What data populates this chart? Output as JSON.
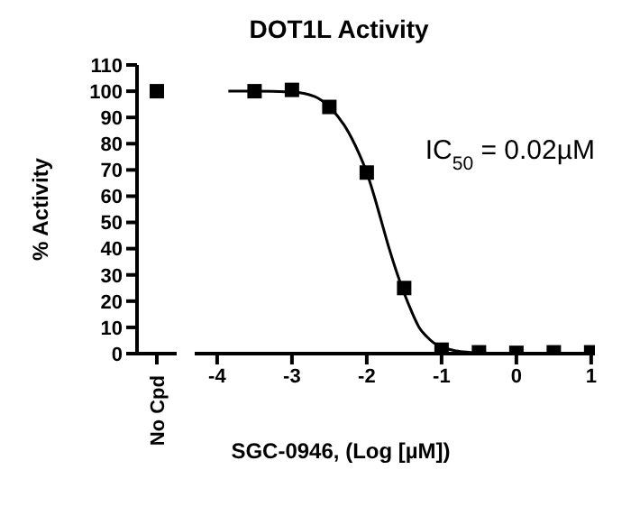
{
  "chart_data": [
    {
      "type": "scatter",
      "ylabel": "% Activity",
      "categories": [
        "No Cpd"
      ],
      "values": [
        100
      ],
      "color": "#000000",
      "marker": "square",
      "ylim": [
        0,
        110
      ],
      "yticks": [
        0,
        10,
        20,
        30,
        40,
        50,
        60,
        70,
        80,
        90,
        100,
        110
      ]
    },
    {
      "type": "scatter",
      "title": "DOT1L Activity",
      "xlabel": "SGC-0946, (Log [µM])",
      "xlim": [
        -4.3,
        1.05
      ],
      "xticks": [
        -4,
        -3,
        -2,
        -1,
        0,
        1
      ],
      "ylim": [
        0,
        110
      ],
      "tick_labels": "x",
      "annotations": [
        "IC$_{50}$ = 0.02µM"
      ],
      "series": [
        {
          "marker": "square",
          "color": "#000000",
          "x": [
            -3.5,
            -3,
            -2.5,
            -2,
            -1.5,
            -1,
            -0.5,
            0,
            0.5,
            1
          ],
          "values": [
            100,
            100.5,
            94,
            69,
            25,
            1.5,
            0.5,
            0.3,
            0.5,
            0.5
          ]
        },
        {
          "type": "line",
          "marker": "none",
          "line_style": "solid",
          "color": "#000000",
          "x": [
            -3.85,
            -3.5,
            -3,
            -2.7,
            -2.5,
            -2.3,
            -2.1,
            -2,
            -1.9,
            -1.8,
            -1.7,
            -1.6,
            -1.5,
            -1.4,
            -1.3,
            -1.2,
            -1.1,
            -1,
            -0.8,
            -0.6,
            -0.3,
            0,
            0.5,
            1
          ],
          "values": [
            100,
            100,
            99.7,
            98,
            94,
            87,
            76,
            69,
            60,
            50,
            40,
            31,
            23,
            16,
            10,
            6.5,
            4,
            2.5,
            1,
            0.4,
            0.1,
            0,
            0,
            0
          ]
        }
      ]
    }
  ]
}
